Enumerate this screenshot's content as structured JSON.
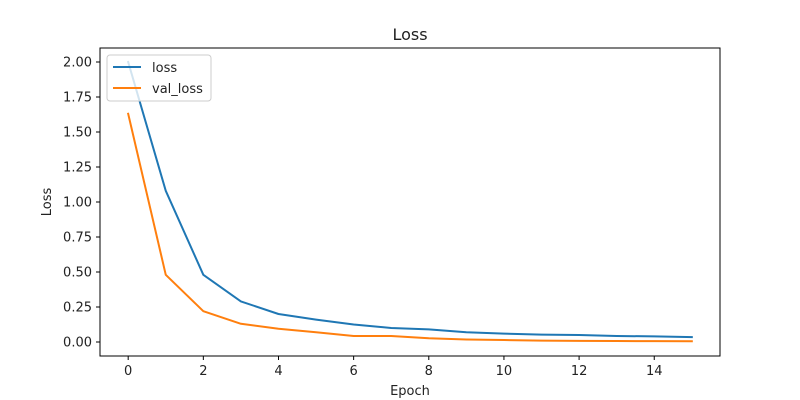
{
  "chart_data": {
    "type": "line",
    "title": "Loss",
    "xlabel": "Epoch",
    "ylabel": "Loss",
    "x": [
      0,
      1,
      2,
      3,
      4,
      5,
      6,
      7,
      8,
      9,
      10,
      11,
      12,
      13,
      14,
      15
    ],
    "xlim": [
      -0.75,
      15.75
    ],
    "ylim": [
      -0.1,
      2.1
    ],
    "xticks": [
      0,
      2,
      4,
      6,
      8,
      10,
      12,
      14
    ],
    "xtick_labels": [
      "0",
      "2",
      "4",
      "6",
      "8",
      "10",
      "12",
      "14"
    ],
    "yticks": [
      0,
      0.25,
      0.5,
      0.75,
      1.0,
      1.25,
      1.5,
      1.75,
      2.0
    ],
    "ytick_labels": [
      "0.00",
      "0.25",
      "0.50",
      "0.75",
      "1.00",
      "1.25",
      "1.50",
      "1.75",
      "2.00"
    ],
    "grid": false,
    "legend_position": "top-left",
    "series": [
      {
        "name": "loss",
        "color": "#1f77b4",
        "values": [
          2.0,
          1.08,
          0.48,
          0.29,
          0.2,
          0.16,
          0.125,
          0.1,
          0.09,
          0.07,
          0.06,
          0.053,
          0.05,
          0.043,
          0.04,
          0.035
        ]
      },
      {
        "name": "val_loss",
        "color": "#ff7f0e",
        "values": [
          1.63,
          0.48,
          0.22,
          0.13,
          0.095,
          0.07,
          0.043,
          0.043,
          0.027,
          0.018,
          0.014,
          0.01,
          0.008,
          0.007,
          0.006,
          0.005
        ]
      }
    ]
  }
}
